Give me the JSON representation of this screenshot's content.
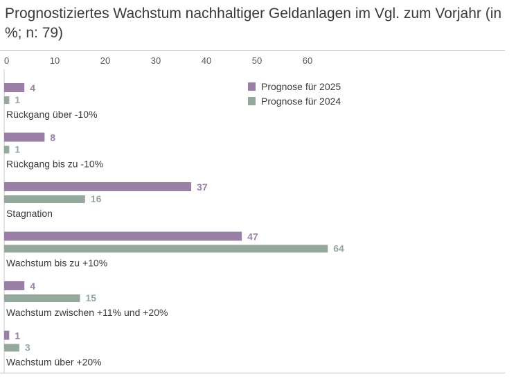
{
  "chart_data": {
    "type": "bar",
    "orientation": "horizontal",
    "title": "Prognostiziertes Wachstum nachhaltiger Geldanlagen im Vgl. zum Vorjahr (in %; n: 79)",
    "categories": [
      "Rückgang über -10%",
      "Rückgang  bis zu -10%",
      "Stagnation",
      "Wachstum bis zu +10%",
      "Wachstum zwischen +11% und +20%",
      "Wachstum über +20%"
    ],
    "series": [
      {
        "name": "Prognose für 2025",
        "color": "#9a7fa6",
        "values": [
          4,
          8,
          37,
          47,
          4,
          1
        ]
      },
      {
        "name": "Prognose für 2024",
        "color": "#94a89c",
        "values": [
          1,
          1,
          16,
          64,
          15,
          3
        ]
      }
    ],
    "xticks": [
      "0",
      "10",
      "20",
      "30",
      "40",
      "50",
      "60"
    ],
    "xlim": [
      0,
      70
    ],
    "grid": false,
    "legend_position": "top-right"
  }
}
